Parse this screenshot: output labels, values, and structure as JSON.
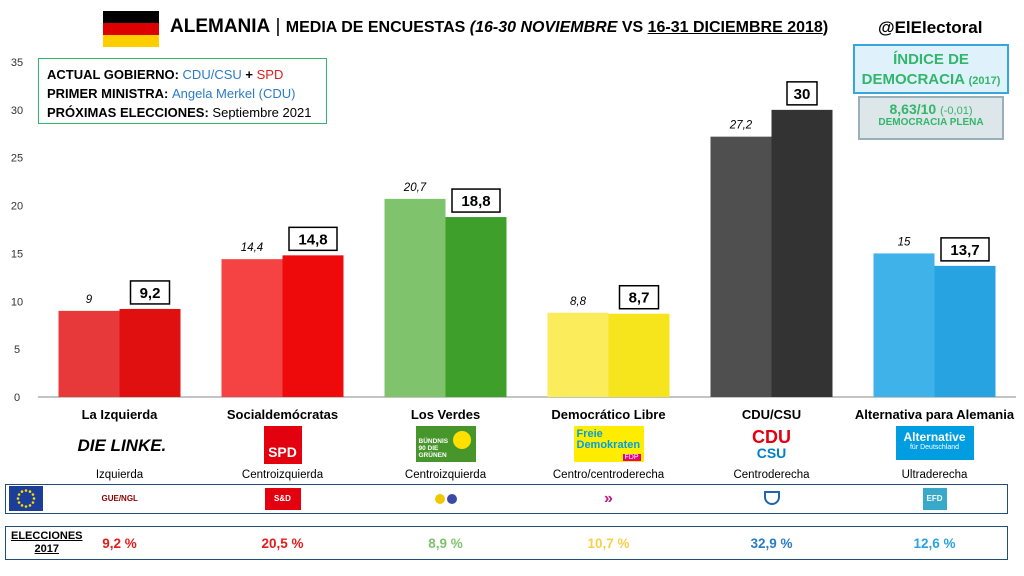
{
  "header": {
    "title_country": "ALEMANIA",
    "title_sep": " | ",
    "title_media": "MEDIA DE ENCUESTAS ",
    "title_range1": "(16-30 NOVIEMBRE",
    "title_vs": " VS ",
    "title_range2": "16-31 DICIEMBRE 2018",
    "title_close": ")",
    "handle": "@ElElectoral"
  },
  "info": {
    "gov_label": "ACTUAL GOBIERNO: ",
    "gov_p1": "CDU/CSU",
    "gov_plus": " + ",
    "gov_p2": "SPD",
    "pm_label": "PRIMER MINISTRA: ",
    "pm_value": "Angela Merkel (CDU)",
    "next_label": "PRÓXIMAS ELECCIONES: ",
    "next_value": "Septiembre 2021"
  },
  "democracy": {
    "title1": "ÍNDICE DE",
    "title2": "DEMOCRACIA",
    "year": "(2017)",
    "score": "8,63/10",
    "change": "(-0,01)",
    "category": "DEMOCRACIA PLENA"
  },
  "colors": {
    "left_prev": "#e8393a",
    "left_curr": "#e11010",
    "spd_prev": "#f54242",
    "spd_curr": "#ee0a0a",
    "green_prev": "#7fc36c",
    "green_curr": "#3e9f2a",
    "fdp_prev": "#faec5a",
    "fdp_curr": "#f6e41c",
    "cdu_prev": "#4f4f4f",
    "cdu_curr": "#333333",
    "afd_prev": "#40b2ea",
    "afd_curr": "#28a3e2"
  },
  "chart_data": {
    "type": "bar",
    "ylim": [
      0,
      35
    ],
    "yticks": [
      "0",
      "5",
      "10",
      "15",
      "20",
      "25",
      "30",
      "35"
    ],
    "categories": [
      "La Izquierda",
      "Socialdemócratas",
      "Los Verdes",
      "Democrático Libre",
      "CDU/CSU",
      "Alternativa para Alemania"
    ],
    "series": [
      {
        "values": [
          9,
          14.4,
          20.7,
          8.8,
          27.2,
          15
        ],
        "labels": [
          "9",
          "14,4",
          "20,7",
          "8,8",
          "27,2",
          "15"
        ]
      },
      {
        "values": [
          9.2,
          14.8,
          18.8,
          8.7,
          30,
          13.7
        ],
        "labels": [
          "9,2",
          "14,8",
          "18,8",
          "8,7",
          "30",
          "13,7"
        ]
      }
    ]
  },
  "parties": [
    {
      "name": "La Izquierda",
      "logo_text": "DIE LINKE.",
      "ideology": "Izquierda",
      "eu_group": "GUE/NGL",
      "elections_2017": "9,2 %",
      "color": "#e21b1b"
    },
    {
      "name": "Socialdemócratas",
      "logo_text": "SPD",
      "ideology": "Centroizquierda",
      "eu_group": "S&D",
      "elections_2017": "20,5 %",
      "color": "#e21b1b"
    },
    {
      "name": "Los Verdes",
      "logo_text": "BÜNDNIS 90 DIE GRÜNEN",
      "ideology": "Centroizquierda",
      "eu_group": "",
      "elections_2017": "8,9 %",
      "color": "#7fc36c"
    },
    {
      "name": "Democrático Libre",
      "logo_text": "Freie Demokraten",
      "logo_sub": "FDP",
      "ideology": "Centro/centroderecha",
      "eu_group": "",
      "elections_2017": "10,7 %",
      "color": "#f5d04a"
    },
    {
      "name": "CDU/CSU",
      "logo_text": "CDU",
      "logo_sub": "CSU",
      "ideology": "Centroderecha",
      "eu_group": "",
      "elections_2017": "32,9 %",
      "color": "#2a7cc7"
    },
    {
      "name": "Alternativa para Alemania",
      "logo_text": "Alternative",
      "logo_sub": "für Deutschland",
      "ideology": "Ultraderecha",
      "eu_group": "EFD",
      "elections_2017": "12,6 %",
      "color": "#28a3e2"
    }
  ],
  "elections": {
    "label1": "ELECCIONES",
    "label2": "2017"
  }
}
